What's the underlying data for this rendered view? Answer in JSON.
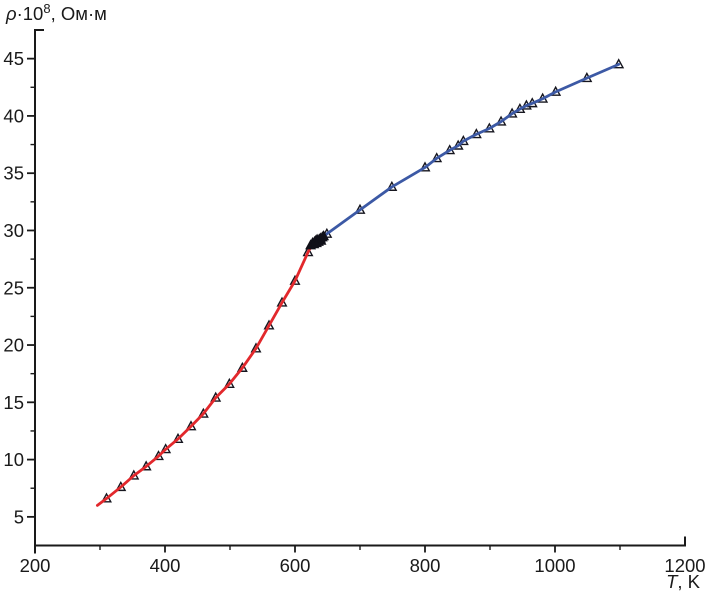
{
  "figure": {
    "background": "#ffffff",
    "axis_color": "#1a1a1a",
    "y_axis_title": {
      "symbol": "ρ",
      "base": "·10",
      "exponent": "8",
      "unit": ", Ом·м"
    },
    "x_axis_title": {
      "symbol": "T",
      "unit": ", K"
    }
  },
  "chart_data": {
    "type": "line",
    "title": "",
    "xlabel": "T, K",
    "ylabel": "ρ·10⁸, Ом·м",
    "xlim": [
      200,
      1200
    ],
    "ylim": [
      2.5,
      47.5
    ],
    "x_major_ticks": [
      200,
      400,
      600,
      800,
      1000,
      1200
    ],
    "x_minor_ticks": [
      300,
      500,
      700,
      900,
      1100
    ],
    "y_major_ticks": [
      5,
      10,
      15,
      20,
      25,
      30,
      35,
      40,
      45
    ],
    "y_minor_ticks": [
      7.5,
      12.5,
      17.5,
      22.5,
      27.5,
      32.5,
      37.5,
      42.5
    ],
    "grid": false,
    "legend": "none",
    "marker": "triangle-up",
    "series": [
      {
        "name": "low-temperature-branch",
        "color": "#e2282c",
        "line_width": 2.8,
        "marker": "open-triangle",
        "marker_edge": "#16161f",
        "marker_fill": "#ffffff",
        "points": [
          [
            310,
            6.6
          ],
          [
            332,
            7.6
          ],
          [
            352,
            8.6
          ],
          [
            371,
            9.4
          ],
          [
            390,
            10.3
          ],
          [
            401,
            10.9
          ],
          [
            420,
            11.8
          ],
          [
            440,
            12.9
          ],
          [
            459,
            14.0
          ],
          [
            478,
            15.4
          ],
          [
            499,
            16.6
          ],
          [
            519,
            18.0
          ],
          [
            540,
            19.7
          ],
          [
            560,
            21.7
          ],
          [
            580,
            23.7
          ],
          [
            600,
            25.6
          ],
          [
            620,
            28.1
          ]
        ],
        "line_extra_start": [
          [
            296,
            6.0
          ]
        ],
        "line_extra_end": [
          [
            627,
            28.85
          ]
        ]
      },
      {
        "name": "high-temperature-branch",
        "color": "#3c59a5",
        "line_width": 2.8,
        "marker": "open-triangle",
        "marker_edge": "#16161f",
        "marker_fill": "#ffffff",
        "points": [
          [
            649,
            29.7
          ],
          [
            700,
            31.8
          ],
          [
            749,
            33.8
          ],
          [
            800,
            35.5
          ],
          [
            818,
            36.3
          ],
          [
            838,
            37.0
          ],
          [
            851,
            37.4
          ],
          [
            859,
            37.8
          ],
          [
            879,
            38.4
          ],
          [
            899,
            38.9
          ],
          [
            917,
            39.5
          ],
          [
            934,
            40.2
          ],
          [
            946,
            40.6
          ],
          [
            956,
            40.9
          ],
          [
            965,
            41.1
          ],
          [
            981,
            41.5
          ],
          [
            1001,
            42.1
          ],
          [
            1049,
            43.3
          ],
          [
            1098,
            44.5
          ]
        ],
        "line_extra_start": [
          [
            640,
            29.2
          ]
        ]
      },
      {
        "name": "phase-transition-cluster",
        "color": "none",
        "line_width": 0,
        "marker": "filled-triangle",
        "marker_edge": "#101018",
        "marker_fill": "#101018",
        "points": [
          [
            624,
            28.7
          ],
          [
            627,
            28.9
          ],
          [
            629,
            28.8
          ],
          [
            630,
            29.0
          ],
          [
            632,
            29.1
          ],
          [
            633,
            28.9
          ],
          [
            634,
            29.2
          ],
          [
            636,
            29.0
          ],
          [
            637,
            29.2
          ],
          [
            639,
            29.3
          ],
          [
            640,
            29.1
          ],
          [
            642,
            29.4
          ],
          [
            644,
            29.5
          ]
        ]
      }
    ]
  }
}
